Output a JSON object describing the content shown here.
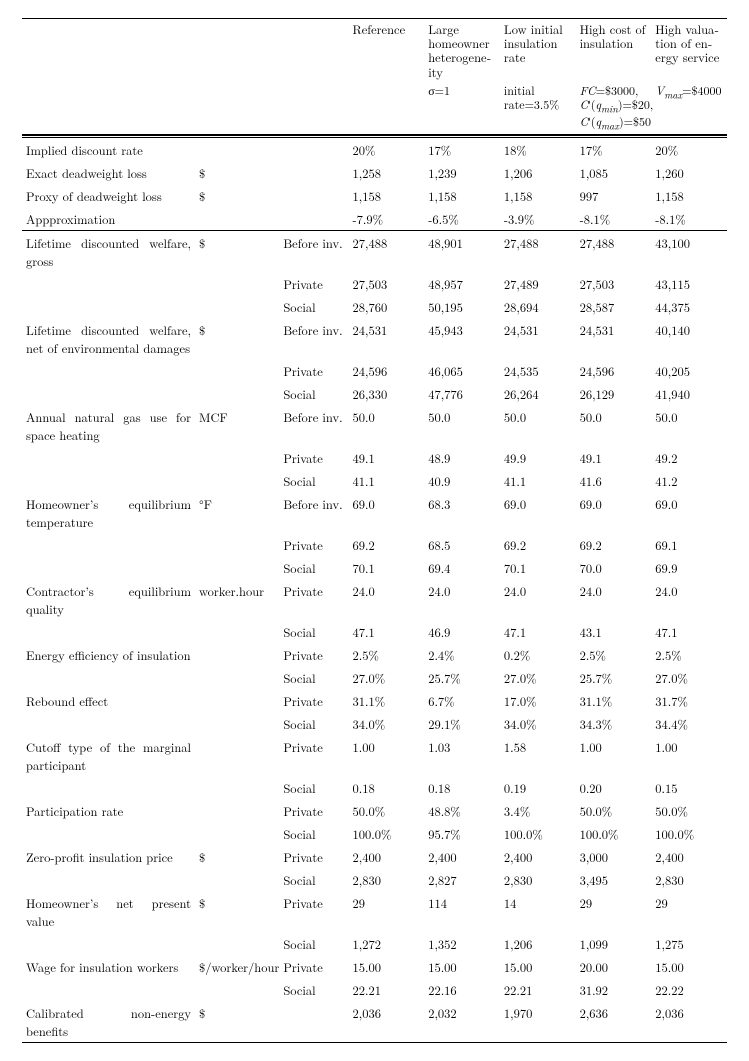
{
  "columns": {
    "empty": "",
    "reference": "Reference",
    "large_het": "Large homeowner heterogene­ity",
    "low_init": "Low initial insulation rate",
    "high_cost": "High cost of insula­tion",
    "high_val": "High valua­tion of en­ergy service"
  },
  "param_notes": {
    "col_d": "σ=1",
    "col_e": "initial rate=3.5%",
    "col_f": "FC=$3000, C′(q_min)=$20, C′(q_max)=$50",
    "col_g": "V_max=$4000"
  },
  "rows": [
    {
      "label": "Implied discount rate",
      "unit": "",
      "scenario": "",
      "v": [
        "20%",
        "17%",
        "18%",
        "17%",
        "20%"
      ]
    },
    {
      "label": "Exact deadweight loss",
      "unit": "$",
      "scenario": "",
      "v": [
        "1,258",
        "1,239",
        "1,206",
        "1,085",
        "1,260"
      ]
    },
    {
      "label": "Proxy of deadweight loss",
      "unit": "$",
      "scenario": "",
      "v": [
        "1,158",
        "1,158",
        "1,158",
        "997",
        "1,158"
      ]
    },
    {
      "label": "Appproximation",
      "unit": "",
      "scenario": "",
      "v": [
        "-7.9%",
        "-6.5%",
        "-3.9%",
        "-8.1%",
        "-8.1%"
      ],
      "rule": "below"
    },
    {
      "label": "Lifetime discounted welfare, gross",
      "unit": "$",
      "scenario": "Before inv.",
      "v": [
        "27,488",
        "48,901",
        "27,488",
        "27,488",
        "43,100"
      ]
    },
    {
      "label": "",
      "unit": "",
      "scenario": "Private",
      "v": [
        "27,503",
        "48,957",
        "27,489",
        "27,503",
        "43,115"
      ]
    },
    {
      "label": "",
      "unit": "",
      "scenario": "Social",
      "v": [
        "28,760",
        "50,195",
        "28,694",
        "28,587",
        "44,375"
      ]
    },
    {
      "label": "Lifetime discounted welfare, net of environmental damages",
      "unit": "$",
      "scenario": "Before inv.",
      "v": [
        "24,531",
        "45,943",
        "24,531",
        "24,531",
        "40,140"
      ]
    },
    {
      "label": "",
      "unit": "",
      "scenario": "Private",
      "v": [
        "24,596",
        "46,065",
        "24,535",
        "24,596",
        "40,205"
      ]
    },
    {
      "label": "",
      "unit": "",
      "scenario": "Social",
      "v": [
        "26,330",
        "47,776",
        "26,264",
        "26,129",
        "41,940"
      ]
    },
    {
      "label": "Annual natural gas use for space heating",
      "unit": "MCF",
      "scenario": "Before inv.",
      "v": [
        "50.0",
        "50.0",
        "50.0",
        "50.0",
        "50.0"
      ]
    },
    {
      "label": "",
      "unit": "",
      "scenario": "Private",
      "v": [
        "49.1",
        "48.9",
        "49.9",
        "49.1",
        "49.2"
      ]
    },
    {
      "label": "",
      "unit": "",
      "scenario": "Social",
      "v": [
        "41.1",
        "40.9",
        "41.1",
        "41.6",
        "41.2"
      ]
    },
    {
      "label": "Homeowner’s equilibrium tem­perature",
      "unit": "°F",
      "scenario": "Before inv.",
      "v": [
        "69.0",
        "68.3",
        "69.0",
        "69.0",
        "69.0"
      ]
    },
    {
      "label": "",
      "unit": "",
      "scenario": "Private",
      "v": [
        "69.2",
        "68.5",
        "69.2",
        "69.2",
        "69.1"
      ]
    },
    {
      "label": "",
      "unit": "",
      "scenario": "Social",
      "v": [
        "70.1",
        "69.4",
        "70.1",
        "70.0",
        "69.9"
      ]
    },
    {
      "label": "Contractor’s equilibrium qual­ity",
      "unit": "worker.hour",
      "scenario": "Private",
      "v": [
        "24.0",
        "24.0",
        "24.0",
        "24.0",
        "24.0"
      ]
    },
    {
      "label": "",
      "unit": "",
      "scenario": "Social",
      "v": [
        "47.1",
        "46.9",
        "47.1",
        "43.1",
        "47.1"
      ]
    },
    {
      "label": "Energy efficiency of insulation",
      "unit": "",
      "scenario": "Private",
      "v": [
        "2.5%",
        "2.4%",
        "0.2%",
        "2.5%",
        "2.5%"
      ]
    },
    {
      "label": "",
      "unit": "",
      "scenario": "Social",
      "v": [
        "27.0%",
        "25.7%",
        "27.0%",
        "25.7%",
        "27.0%"
      ]
    },
    {
      "label": "Rebound effect",
      "unit": "",
      "scenario": "Private",
      "v": [
        "31.1%",
        "6.7%",
        "17.0%",
        "31.1%",
        "31.7%"
      ]
    },
    {
      "label": "",
      "unit": "",
      "scenario": "Social",
      "v": [
        "34.0%",
        "29.1%",
        "34.0%",
        "34.3%",
        "34.4%"
      ]
    },
    {
      "label": "Cutoff type of the marginal participant",
      "unit": "",
      "scenario": "Private",
      "v": [
        "1.00",
        "1.03",
        "1.58",
        "1.00",
        "1.00"
      ]
    },
    {
      "label": "",
      "unit": "",
      "scenario": "Social",
      "v": [
        "0.18",
        "0.18",
        "0.19",
        "0.20",
        "0.15"
      ]
    },
    {
      "label": "Participation rate",
      "unit": "",
      "scenario": "Private",
      "v": [
        "50.0%",
        "48.8%",
        "3.4%",
        "50.0%",
        "50.0%"
      ]
    },
    {
      "label": "",
      "unit": "",
      "scenario": "Social",
      "v": [
        "100.0%",
        "95.7%",
        "100.0%",
        "100.0%",
        "100.0%"
      ]
    },
    {
      "label": "Zero-profit insulation price",
      "unit": "$",
      "scenario": "Private",
      "v": [
        "2,400",
        "2,400",
        "2,400",
        "3,000",
        "2,400"
      ]
    },
    {
      "label": "",
      "unit": "",
      "scenario": "Social",
      "v": [
        "2,830",
        "2,827",
        "2,830",
        "3,495",
        "2,830"
      ]
    },
    {
      "label": "Homeowner’s net present value",
      "unit": "$",
      "scenario": "Private",
      "v": [
        "29",
        "114",
        "14",
        "29",
        "29"
      ]
    },
    {
      "label": "",
      "unit": "",
      "scenario": "Social",
      "v": [
        "1,272",
        "1,352",
        "1,206",
        "1,099",
        "1,275"
      ]
    },
    {
      "label": "Wage for insulation workers",
      "unit": "$/worker/hour",
      "scenario": "Private",
      "v": [
        "15.00",
        "15.00",
        "15.00",
        "20.00",
        "15.00"
      ]
    },
    {
      "label": "",
      "unit": "",
      "scenario": "Social",
      "v": [
        "22.21",
        "22.16",
        "22.21",
        "31.92",
        "22.22"
      ]
    },
    {
      "label": "Calibrated non-energy benefits",
      "unit": "$",
      "scenario": "",
      "v": [
        "2,036",
        "2,032",
        "1,970",
        "2,636",
        "2,036"
      ]
    }
  ]
}
